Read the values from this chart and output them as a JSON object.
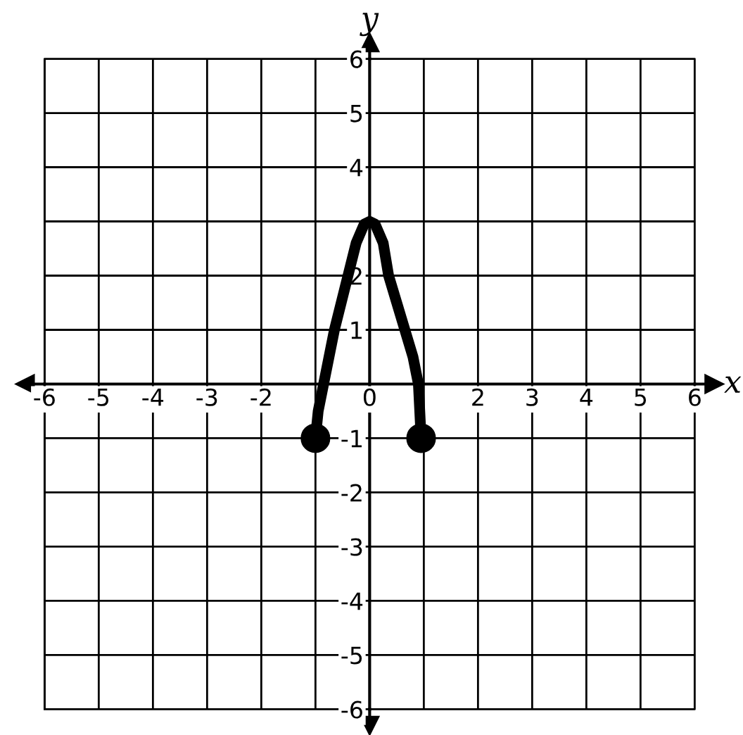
{
  "chart_data": {
    "type": "line",
    "xlabel": "x",
    "ylabel": "y",
    "series": [
      {
        "color": "#000000",
        "marker": "none",
        "x": [
          -1,
          -0.95,
          -0.85,
          -0.65,
          -0.4,
          -0.25,
          -0.1,
          0,
          0.1,
          0.25,
          0.35,
          0.5,
          0.65,
          0.8,
          0.9,
          0.95
        ],
        "values": [
          -1,
          -0.5,
          0,
          1,
          2,
          2.6,
          2.95,
          3,
          2.95,
          2.6,
          2,
          1.5,
          1,
          0.5,
          0,
          -1
        ]
      },
      {
        "type": "scatter",
        "color": "#000000",
        "marker": "circle",
        "x": [
          -1,
          0.95
        ],
        "values": [
          -1,
          -1
        ]
      }
    ],
    "xlim": [
      -6,
      6
    ],
    "ylim": [
      -6,
      6
    ],
    "xticks": [
      -6,
      -5,
      -4,
      -3,
      -2,
      {
        "value": -1,
        "label": null
      },
      0,
      {
        "value": 1,
        "label": null
      },
      2,
      3,
      4,
      5,
      6
    ],
    "yticks": [
      -6,
      -5,
      -4,
      -3,
      -2,
      -1,
      {
        "value": 0,
        "label": null
      },
      1,
      2,
      {
        "value": 3,
        "label": null
      },
      4,
      5,
      6
    ],
    "grid": true
  }
}
